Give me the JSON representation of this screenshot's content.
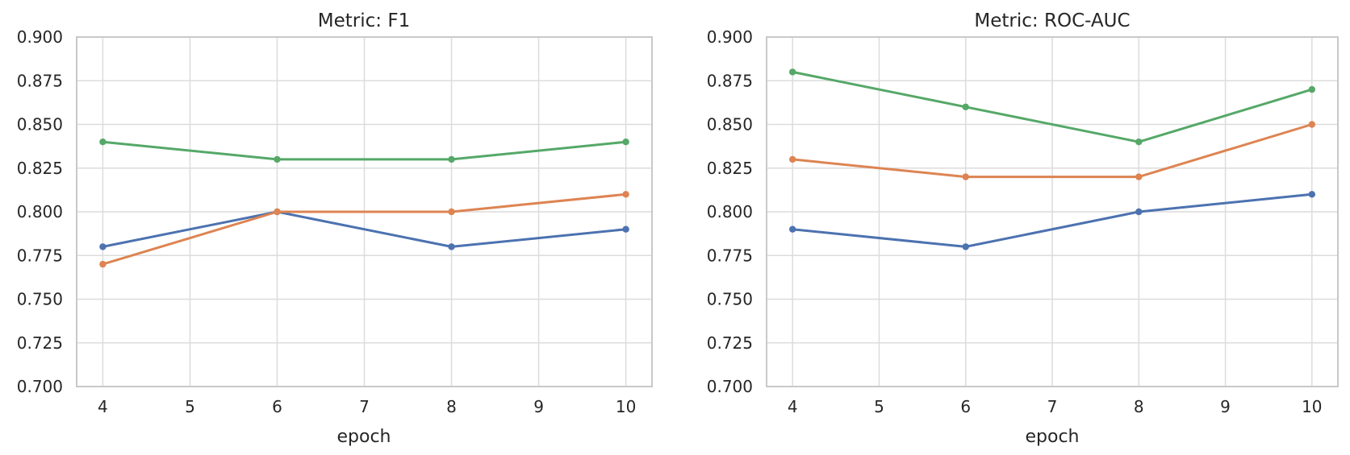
{
  "style": {
    "background_color": "#ffffff",
    "grid_color": "#dcdcdc",
    "spine_color": "#c9c9c9",
    "text_color": "#262626"
  },
  "chart_data": [
    {
      "type": "line",
      "title": "Metric: F1",
      "xlabel": "epoch",
      "ylabel": "",
      "x": [
        4,
        6,
        8,
        10
      ],
      "xlim": [
        3.7,
        10.3
      ],
      "ylim": [
        0.7,
        0.9
      ],
      "xticks": [
        4,
        5,
        6,
        7,
        8,
        9,
        10
      ],
      "yticks": [
        0.7,
        0.725,
        0.75,
        0.775,
        0.8,
        0.825,
        0.85,
        0.875,
        0.9
      ],
      "ytick_labels": [
        "0.700",
        "0.725",
        "0.750",
        "0.775",
        "0.800",
        "0.825",
        "0.850",
        "0.875",
        "0.900"
      ],
      "grid": true,
      "legend": "none",
      "marker": "circle",
      "series": [
        {
          "name": "blue",
          "color": "#4C72B0",
          "values": [
            0.78,
            0.8,
            0.78,
            0.79
          ]
        },
        {
          "name": "orange",
          "color": "#DD8452",
          "values": [
            0.77,
            0.8,
            0.8,
            0.81
          ]
        },
        {
          "name": "green",
          "color": "#55A868",
          "values": [
            0.84,
            0.83,
            0.83,
            0.84
          ]
        }
      ]
    },
    {
      "type": "line",
      "title": "Metric: ROC-AUC",
      "xlabel": "epoch",
      "ylabel": "",
      "x": [
        4,
        6,
        8,
        10
      ],
      "xlim": [
        3.7,
        10.3
      ],
      "ylim": [
        0.7,
        0.9
      ],
      "xticks": [
        4,
        5,
        6,
        7,
        8,
        9,
        10
      ],
      "yticks": [
        0.7,
        0.725,
        0.75,
        0.775,
        0.8,
        0.825,
        0.85,
        0.875,
        0.9
      ],
      "ytick_labels": [
        "0.700",
        "0.725",
        "0.750",
        "0.775",
        "0.800",
        "0.825",
        "0.850",
        "0.875",
        "0.900"
      ],
      "grid": true,
      "legend": "none",
      "marker": "circle",
      "series": [
        {
          "name": "blue",
          "color": "#4C72B0",
          "values": [
            0.79,
            0.78,
            0.8,
            0.81
          ]
        },
        {
          "name": "orange",
          "color": "#DD8452",
          "values": [
            0.83,
            0.82,
            0.82,
            0.85
          ]
        },
        {
          "name": "green",
          "color": "#55A868",
          "values": [
            0.88,
            0.86,
            0.84,
            0.87
          ]
        }
      ]
    }
  ]
}
